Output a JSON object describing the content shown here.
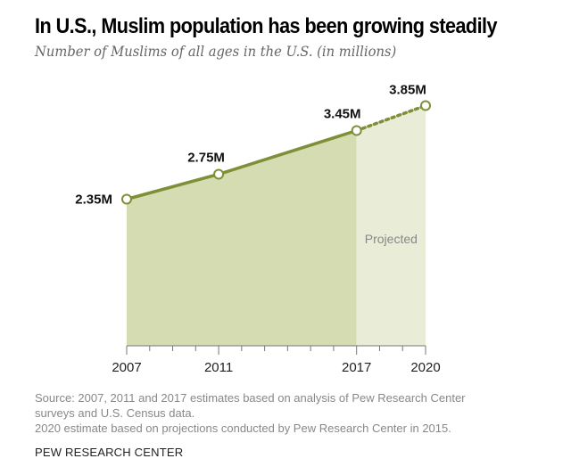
{
  "chart_data": {
    "type": "area",
    "title": "In U.S., Muslim population has been growing steadily",
    "subtitle": "Number of Muslims of all ages in the U.S. (in millions)",
    "xlabel": "",
    "ylabel": "",
    "x": [
      2007,
      2011,
      2017,
      2020
    ],
    "values": [
      2.35,
      2.75,
      3.45,
      3.85
    ],
    "data_labels": [
      "2.35M",
      "2.75M",
      "3.45M",
      "3.85M"
    ],
    "tick_labels": [
      "2007",
      "2011",
      "2017",
      "2020"
    ],
    "xlim": [
      2007,
      2020
    ],
    "ylim": [
      0,
      4
    ],
    "projected_from": 2017,
    "projected_label": "Projected",
    "grid": false,
    "colors": {
      "line": "#7d8f37",
      "area_actual": "#d5dcb1",
      "area_projected": "#e9edd7"
    }
  },
  "footer": {
    "source_line1": "Source: 2007, 2011 and 2017 estimates based on analysis of Pew Research Center",
    "source_line2": "surveys and U.S. Census data.",
    "source_line3": "2020 estimate based on projections conducted by Pew Research Center in 2015.",
    "brand": "PEW RESEARCH CENTER"
  }
}
